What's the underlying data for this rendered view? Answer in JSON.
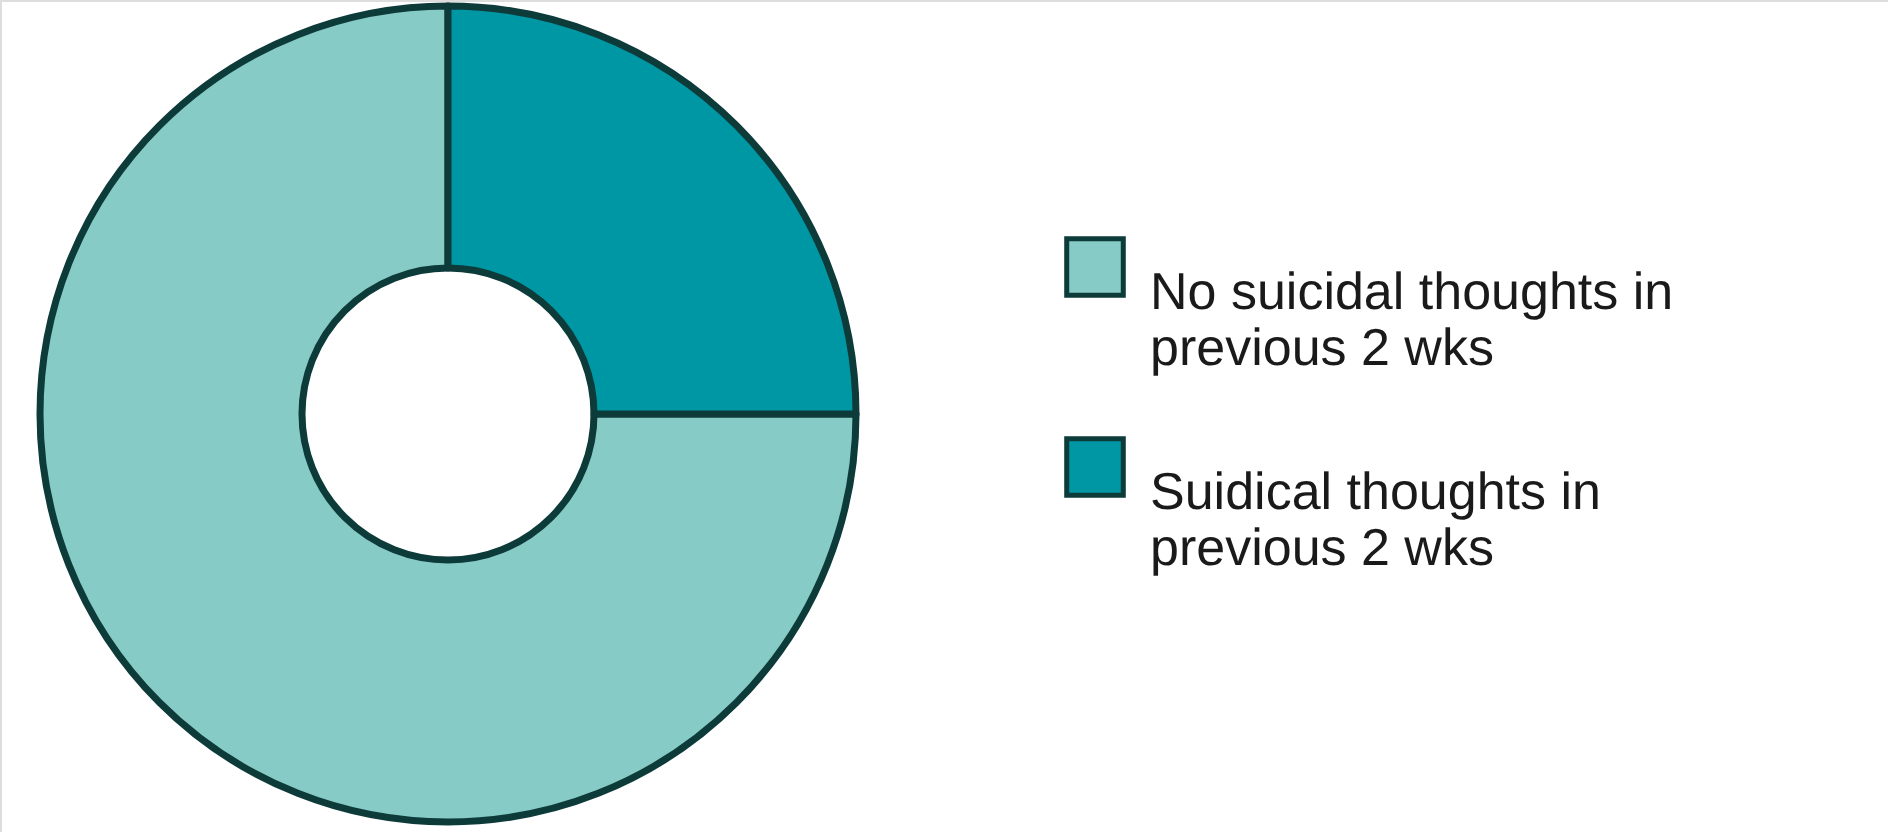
{
  "chart_data": {
    "type": "donut",
    "categories": [
      "No suicidal thoughts in previous 2 wks",
      "Suidical thoughts in previous 2 wks"
    ],
    "values": [
      75,
      25
    ],
    "colors": [
      "#87cbc6",
      "#0097a5"
    ],
    "legend": "right"
  }
}
